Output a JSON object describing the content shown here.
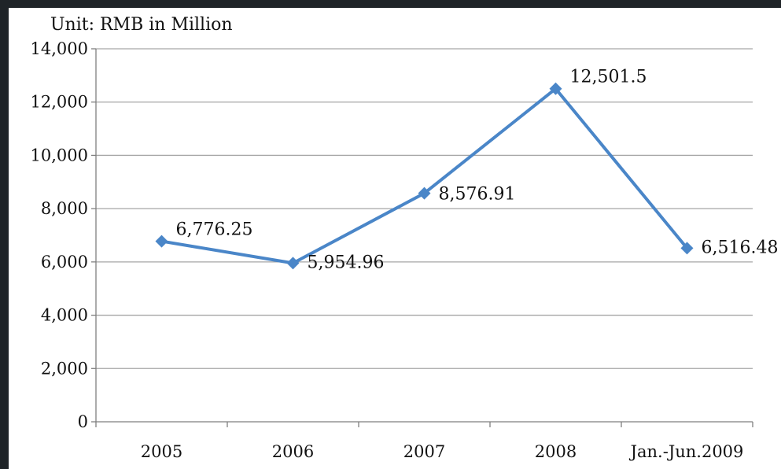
{
  "chart_data": {
    "type": "line",
    "unit_label": "Unit: RMB in Million",
    "categories": [
      "2005",
      "2006",
      "2007",
      "2008",
      "Jan.-Jun.2009"
    ],
    "values": [
      6776.25,
      5954.96,
      8576.91,
      12501.5,
      6516.48
    ],
    "data_labels": [
      "6,776.25",
      "5,954.96",
      "8,576.91",
      "12,501.5",
      "6,516.48"
    ],
    "ylim": [
      0,
      14000
    ],
    "yticks": [
      0,
      2000,
      4000,
      6000,
      8000,
      10000,
      12000,
      14000
    ],
    "ytick_labels": [
      "0",
      "2,000",
      "4,000",
      "6,000",
      "8,000",
      "10,000",
      "12,000",
      "14,000"
    ],
    "grid": true,
    "legend": "none",
    "colors": {
      "line": "#4a86c8",
      "marker": "#4a86c8",
      "grid": "#a6a6a6",
      "axis": "#7f7f7f",
      "background": "#ffffff",
      "frame": "#1f2428"
    }
  }
}
